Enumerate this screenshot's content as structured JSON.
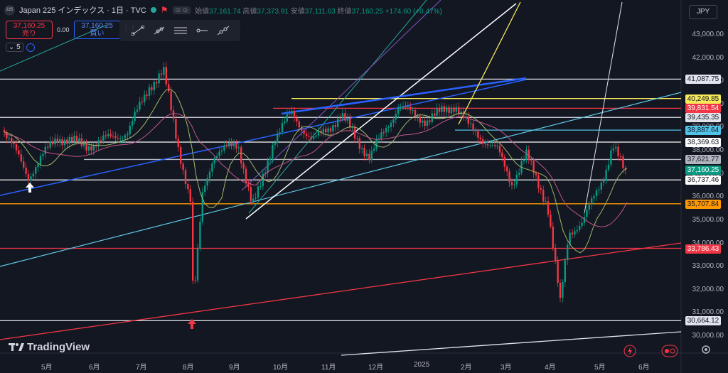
{
  "header": {
    "logo_text": "225",
    "symbol": "Japan 225 インデックス · 1日 · TVC",
    "mini_label": "⊙ ⊙",
    "ohlc": {
      "open_label": "始値",
      "open": "37,161.74",
      "high_label": "高値",
      "high": "37,373.91",
      "low_label": "安値",
      "low": "37,111.63",
      "close_label": "終値",
      "close": "37,160.25",
      "change": "+174.60 (+0.47%)"
    }
  },
  "trade": {
    "sell_price": "37,160.25",
    "sell_label": "売り",
    "spread": "0.00",
    "buy_price": "37,160.25",
    "buy_label": "買い"
  },
  "indicator": {
    "value": "5"
  },
  "currency": "JPY",
  "price_axis": [
    "43,000.00",
    "42,000.00",
    "41,000.00",
    "40,000.00",
    "39,000.00",
    "38,000.00",
    "37,000.00",
    "36,000.00",
    "35,000.00",
    "34,000.00",
    "33,000.00",
    "32,000.00",
    "31,000.00",
    "30,000.00"
  ],
  "price_labels": [
    {
      "text": "41,087.75",
      "bg": "#e0e3eb",
      "fg": "#131722"
    },
    {
      "text": "40,249.85",
      "bg": "#f7e95a",
      "fg": "#131722"
    },
    {
      "text": "39,831.54",
      "bg": "#f23645",
      "fg": "#ffffff"
    },
    {
      "text": "39,435.35",
      "bg": "#e0e3eb",
      "fg": "#131722"
    },
    {
      "text": "38,887.64",
      "bg": "#4fc3e8",
      "fg": "#131722"
    },
    {
      "text": "38,369.63",
      "bg": "#ffffff",
      "fg": "#131722"
    },
    {
      "text": "37,621.77",
      "bg": "#b2b5be",
      "fg": "#131722"
    },
    {
      "text": "37,160.25",
      "bg": "#089981",
      "fg": "#ffffff"
    },
    {
      "text": "36,737.46",
      "bg": "#ffffff",
      "fg": "#131722"
    },
    {
      "text": "35,707.84",
      "bg": "#ff9800",
      "fg": "#131722"
    },
    {
      "text": "33,786.43",
      "bg": "#f23645",
      "fg": "#ffffff"
    },
    {
      "text": "30,664.12",
      "bg": "#e0e3eb",
      "fg": "#131722"
    }
  ],
  "time_axis": [
    "5月",
    "6月",
    "7月",
    "8月",
    "9月",
    "10月",
    "11月",
    "12月",
    "2025",
    "2月",
    "3月",
    "4月",
    "5月",
    "6月"
  ],
  "brand": "TradingView",
  "colors": {
    "up": "#089981",
    "down": "#f23645",
    "bg": "#131722"
  }
}
